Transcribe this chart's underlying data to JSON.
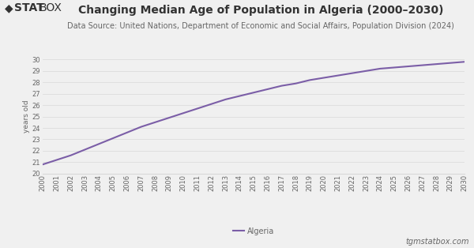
{
  "title": "Changing Median Age of Population in Algeria (2000–2030)",
  "subtitle": "Data Source: United Nations, Department of Economic and Social Affairs, Population Division (2024)",
  "ylabel": "years old",
  "watermark": "tgmstatbox.com",
  "legend_label": "Algeria",
  "line_color": "#7B5EA7",
  "background_color": "#f0f0f0",
  "plot_bg_color": "#f0f0f0",
  "years": [
    2000,
    2001,
    2002,
    2003,
    2004,
    2005,
    2006,
    2007,
    2008,
    2009,
    2010,
    2011,
    2012,
    2013,
    2014,
    2015,
    2016,
    2017,
    2018,
    2019,
    2020,
    2021,
    2022,
    2023,
    2024,
    2025,
    2026,
    2027,
    2028,
    2029,
    2030
  ],
  "values": [
    20.8,
    21.2,
    21.6,
    22.1,
    22.6,
    23.1,
    23.6,
    24.1,
    24.5,
    24.9,
    25.3,
    25.7,
    26.1,
    26.5,
    26.8,
    27.1,
    27.4,
    27.7,
    27.9,
    28.2,
    28.4,
    28.6,
    28.8,
    29.0,
    29.2,
    29.3,
    29.4,
    29.5,
    29.6,
    29.7,
    29.8
  ],
  "ylim": [
    20,
    30
  ],
  "yticks": [
    20,
    21,
    22,
    23,
    24,
    25,
    26,
    27,
    28,
    29,
    30
  ],
  "title_fontsize": 10,
  "subtitle_fontsize": 7,
  "ylabel_fontsize": 6.5,
  "tick_fontsize": 6,
  "legend_fontsize": 7,
  "watermark_fontsize": 7,
  "logo_fontsize": 10,
  "grid_color": "#d8d8d8",
  "text_color": "#333333",
  "tick_color": "#666666",
  "line_width": 1.5
}
